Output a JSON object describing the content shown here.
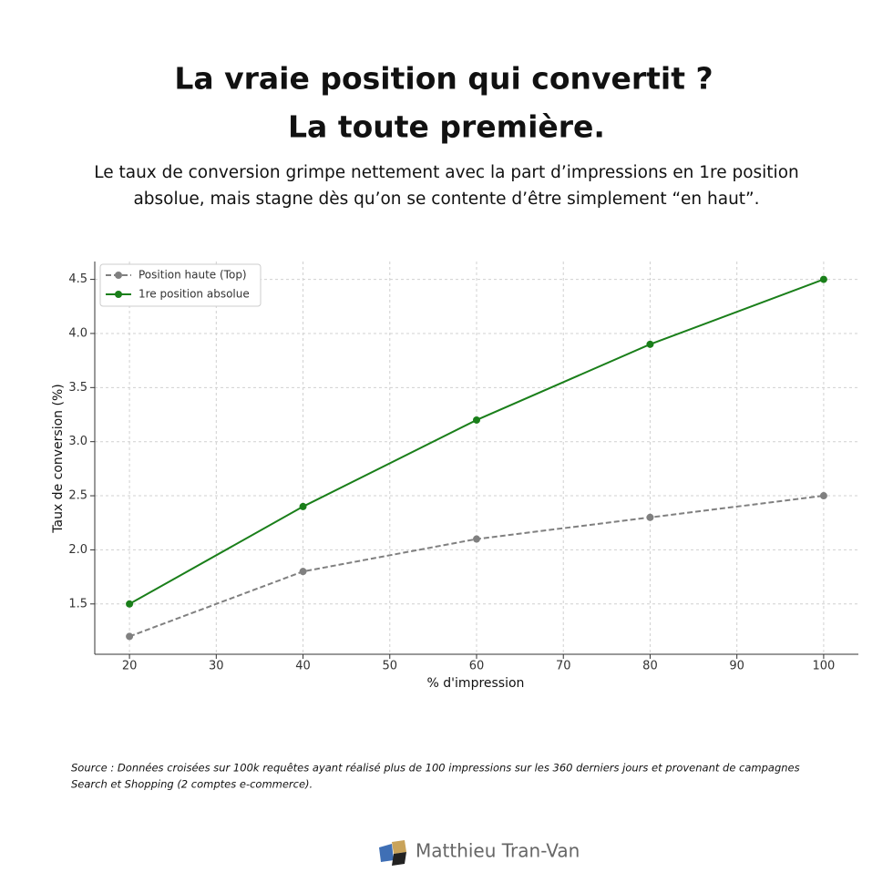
{
  "chart_data": {
    "type": "line",
    "title": [
      "La vraie position qui convertit ?",
      "La toute première."
    ],
    "subtitle": [
      "Le taux de conversion grimpe nettement avec la part d’impressions en 1re position",
      "absolue, mais stagne dès qu’on se contente d’être simplement “en haut”."
    ],
    "x_label": "% d'impression",
    "y_label": "Taux de conversion (%)",
    "x": [
      20,
      40,
      60,
      80,
      100
    ],
    "series": [
      {
        "name": "Position haute (Top)",
        "color": "#808080",
        "linestyle": "dashed",
        "values": [
          1.2,
          1.8,
          2.1,
          2.3,
          2.5
        ]
      },
      {
        "name": "1re position absolue",
        "color": "#1a7f1a",
        "linestyle": "solid",
        "values": [
          1.5,
          2.4,
          3.2,
          3.9,
          4.5
        ]
      }
    ],
    "xlim": [
      16,
      104
    ],
    "xticks": [
      20,
      30,
      40,
      50,
      60,
      70,
      80,
      90,
      100
    ],
    "ylim": [
      1.035,
      4.665
    ],
    "yticks": [
      1.5,
      {
        "value": 2,
        "label": "2.0"
      },
      2.5,
      {
        "value": 3,
        "label": "3.0"
      },
      3.5,
      {
        "value": 4,
        "label": "4.0"
      },
      4.5
    ],
    "grid": true,
    "legend": "upper left",
    "source": [
      "Source : Données croisées sur 100k requêtes ayant réalisé plus de 100 impressions sur les 360 derniers jours et provenant de campagnes",
      "Search et Shopping (2 comptes e-commerce)."
    ],
    "author": "Matthieu Tran-Van"
  }
}
